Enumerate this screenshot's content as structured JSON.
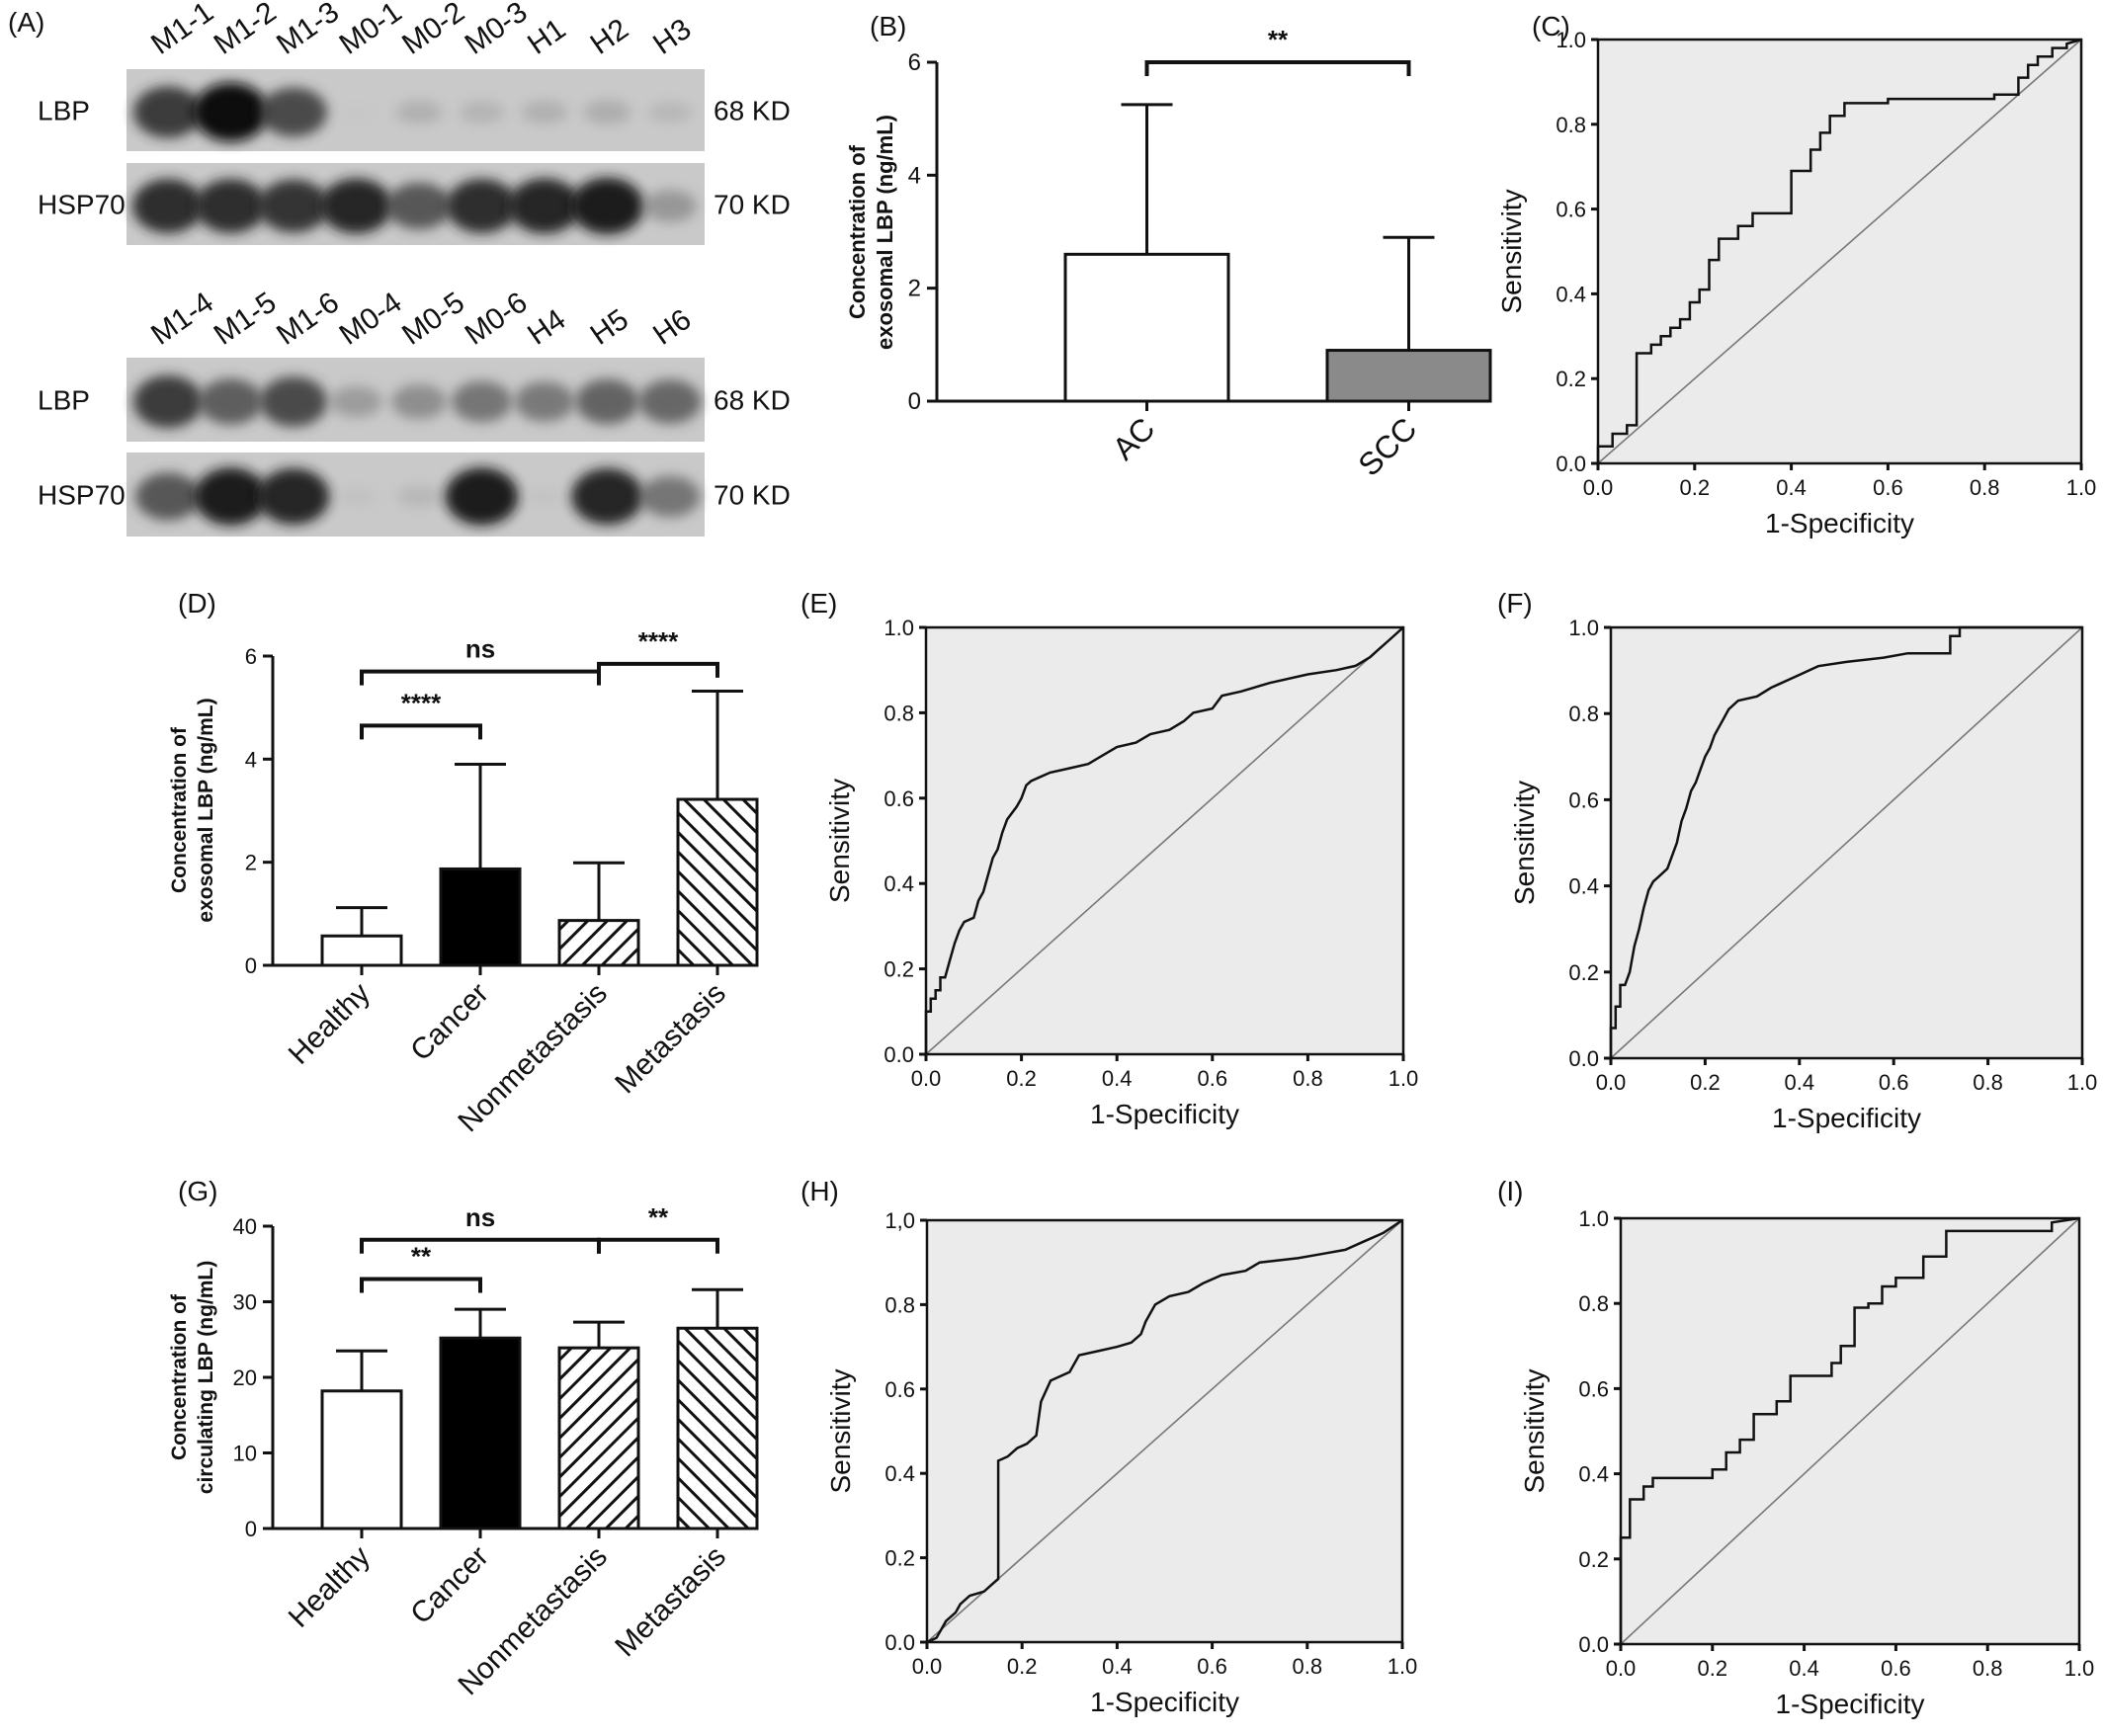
{
  "panels": {
    "A": {
      "label": "(A)",
      "blot_top": {
        "lanes": [
          "M1-1",
          "M1-2",
          "M1-3",
          "M0-1",
          "M0-2",
          "M0-3",
          "H1",
          "H2",
          "H3"
        ],
        "rows": [
          {
            "name": "LBP",
            "size": "68 KD",
            "intensities": [
              0.85,
              1.0,
              0.8,
              0.05,
              0.28,
              0.25,
              0.28,
              0.3,
              0.22
            ]
          },
          {
            "name": "HSP70",
            "size": "70 KD",
            "intensities": [
              0.9,
              0.9,
              0.88,
              0.92,
              0.75,
              0.9,
              0.92,
              0.95,
              0.45
            ]
          }
        ]
      },
      "blot_bottom": {
        "lanes": [
          "M1-4",
          "M1-5",
          "M1-6",
          "M0-4",
          "M0-5",
          "M0-6",
          "H4",
          "H5",
          "H6"
        ],
        "rows": [
          {
            "name": "LBP",
            "size": "68 KD",
            "intensities": [
              0.85,
              0.72,
              0.8,
              0.42,
              0.5,
              0.62,
              0.6,
              0.7,
              0.68
            ]
          },
          {
            "name": "HSP70",
            "size": "70 KD",
            "intensities": [
              0.75,
              0.95,
              0.92,
              0.12,
              0.22,
              0.95,
              0.1,
              0.92,
              0.62
            ]
          }
        ]
      }
    }
  },
  "chart_data": [
    {
      "id": "B",
      "label": "(B)",
      "type": "bar",
      "categories": [
        "AC",
        "SCC"
      ],
      "values": [
        2.6,
        0.9
      ],
      "errors": [
        2.65,
        2.0
      ],
      "fills": [
        "#ffffff",
        "#8a8a8a"
      ],
      "patterns": [
        "none",
        "none"
      ],
      "ylabel": [
        "Concentration of",
        "exosomal LBP (ng/mL)"
      ],
      "ylim": [
        0,
        6
      ],
      "yticks": [
        0,
        2,
        4,
        6
      ],
      "significance": [
        {
          "from": 0,
          "to": 1,
          "text": "**",
          "y": 6
        }
      ]
    },
    {
      "id": "C",
      "label": "(C)",
      "type": "line",
      "subtype": "roc",
      "xlabel": "1-Specificity",
      "ylabel": "Sensitivity",
      "xlim": [
        0,
        1
      ],
      "ylim": [
        0,
        1
      ],
      "ticks": [
        "0.0",
        "0.2",
        "0.4",
        "0.6",
        "0.8",
        "1.0"
      ],
      "points": [
        [
          0,
          0
        ],
        [
          0,
          0.04
        ],
        [
          0.03,
          0.04
        ],
        [
          0.03,
          0.07
        ],
        [
          0.06,
          0.07
        ],
        [
          0.06,
          0.09
        ],
        [
          0.08,
          0.09
        ],
        [
          0.08,
          0.26
        ],
        [
          0.11,
          0.26
        ],
        [
          0.11,
          0.28
        ],
        [
          0.13,
          0.28
        ],
        [
          0.13,
          0.3
        ],
        [
          0.15,
          0.3
        ],
        [
          0.15,
          0.32
        ],
        [
          0.17,
          0.32
        ],
        [
          0.17,
          0.34
        ],
        [
          0.19,
          0.34
        ],
        [
          0.19,
          0.38
        ],
        [
          0.21,
          0.38
        ],
        [
          0.21,
          0.41
        ],
        [
          0.23,
          0.41
        ],
        [
          0.23,
          0.48
        ],
        [
          0.25,
          0.48
        ],
        [
          0.25,
          0.53
        ],
        [
          0.29,
          0.53
        ],
        [
          0.29,
          0.56
        ],
        [
          0.32,
          0.56
        ],
        [
          0.32,
          0.59
        ],
        [
          0.4,
          0.59
        ],
        [
          0.4,
          0.69
        ],
        [
          0.44,
          0.69
        ],
        [
          0.44,
          0.74
        ],
        [
          0.46,
          0.74
        ],
        [
          0.46,
          0.78
        ],
        [
          0.48,
          0.78
        ],
        [
          0.48,
          0.82
        ],
        [
          0.51,
          0.82
        ],
        [
          0.51,
          0.85
        ],
        [
          0.6,
          0.85
        ],
        [
          0.6,
          0.86
        ],
        [
          0.82,
          0.86
        ],
        [
          0.82,
          0.87
        ],
        [
          0.87,
          0.87
        ],
        [
          0.87,
          0.91
        ],
        [
          0.89,
          0.91
        ],
        [
          0.89,
          0.94
        ],
        [
          0.91,
          0.94
        ],
        [
          0.91,
          0.96
        ],
        [
          0.94,
          0.96
        ],
        [
          0.94,
          0.98
        ],
        [
          0.97,
          0.98
        ],
        [
          0.97,
          0.99
        ],
        [
          1,
          1
        ]
      ]
    },
    {
      "id": "D",
      "label": "(D)",
      "type": "bar",
      "categories": [
        "Healthy",
        "Cancer",
        "Nonmetastasis",
        "Metastasis"
      ],
      "values": [
        0.57,
        1.87,
        0.87,
        3.22
      ],
      "errors": [
        0.55,
        2.03,
        1.12,
        2.1
      ],
      "fills": [
        "#ffffff",
        "#000000",
        "#ffffff",
        "#ffffff"
      ],
      "patterns": [
        "none",
        "none",
        "hatch-back",
        "hatch-fwd"
      ],
      "ylabel": [
        "Concentration of",
        "exosomal LBP (ng/mL)"
      ],
      "ylim": [
        0,
        6
      ],
      "yticks": [
        0,
        2,
        4,
        6
      ],
      "significance": [
        {
          "from": 0,
          "to": 2,
          "text": "ns",
          "y": 5.7
        },
        {
          "from": 0,
          "to": 1,
          "text": "****",
          "y": 4.65
        },
        {
          "from": 2,
          "to": 3,
          "text": "****",
          "y": 5.85
        }
      ]
    },
    {
      "id": "E",
      "label": "(E)",
      "type": "line",
      "subtype": "roc",
      "xlabel": "1-Specificity",
      "ylabel": "Sensitivity",
      "xlim": [
        0,
        1
      ],
      "ylim": [
        0,
        1
      ],
      "ticks": [
        "0.0",
        "0.2",
        "0.4",
        "0.6",
        "0.8",
        "1.0"
      ],
      "points": [
        [
          0,
          0
        ],
        [
          0,
          0.1
        ],
        [
          0.01,
          0.1
        ],
        [
          0.01,
          0.13
        ],
        [
          0.02,
          0.13
        ],
        [
          0.02,
          0.15
        ],
        [
          0.03,
          0.15
        ],
        [
          0.03,
          0.18
        ],
        [
          0.04,
          0.18
        ],
        [
          0.05,
          0.22
        ],
        [
          0.06,
          0.26
        ],
        [
          0.07,
          0.29
        ],
        [
          0.08,
          0.31
        ],
        [
          0.1,
          0.32
        ],
        [
          0.11,
          0.36
        ],
        [
          0.12,
          0.38
        ],
        [
          0.13,
          0.42
        ],
        [
          0.14,
          0.46
        ],
        [
          0.15,
          0.48
        ],
        [
          0.16,
          0.52
        ],
        [
          0.17,
          0.55
        ],
        [
          0.19,
          0.58
        ],
        [
          0.2,
          0.6
        ],
        [
          0.21,
          0.63
        ],
        [
          0.22,
          0.64
        ],
        [
          0.24,
          0.65
        ],
        [
          0.26,
          0.66
        ],
        [
          0.3,
          0.67
        ],
        [
          0.34,
          0.68
        ],
        [
          0.37,
          0.7
        ],
        [
          0.4,
          0.72
        ],
        [
          0.44,
          0.73
        ],
        [
          0.47,
          0.75
        ],
        [
          0.51,
          0.76
        ],
        [
          0.54,
          0.78
        ],
        [
          0.56,
          0.8
        ],
        [
          0.6,
          0.81
        ],
        [
          0.62,
          0.84
        ],
        [
          0.66,
          0.85
        ],
        [
          0.72,
          0.87
        ],
        [
          0.8,
          0.89
        ],
        [
          0.86,
          0.9
        ],
        [
          0.9,
          0.91
        ],
        [
          0.93,
          0.93
        ],
        [
          0.95,
          0.95
        ],
        [
          0.97,
          0.97
        ],
        [
          1,
          1
        ]
      ]
    },
    {
      "id": "F",
      "label": "(F)",
      "type": "line",
      "subtype": "roc",
      "xlabel": "1-Specificity",
      "ylabel": "Sensitivity",
      "xlim": [
        0,
        1
      ],
      "ylim": [
        0,
        1
      ],
      "ticks": [
        "0.0",
        "0.2",
        "0.4",
        "0.6",
        "0.8",
        "1.0"
      ],
      "points": [
        [
          0,
          0
        ],
        [
          0,
          0.07
        ],
        [
          0.01,
          0.07
        ],
        [
          0.01,
          0.12
        ],
        [
          0.02,
          0.12
        ],
        [
          0.02,
          0.17
        ],
        [
          0.03,
          0.17
        ],
        [
          0.04,
          0.2
        ],
        [
          0.05,
          0.26
        ],
        [
          0.06,
          0.3
        ],
        [
          0.07,
          0.35
        ],
        [
          0.08,
          0.39
        ],
        [
          0.09,
          0.41
        ],
        [
          0.1,
          0.42
        ],
        [
          0.12,
          0.44
        ],
        [
          0.13,
          0.47
        ],
        [
          0.14,
          0.5
        ],
        [
          0.15,
          0.55
        ],
        [
          0.16,
          0.58
        ],
        [
          0.17,
          0.62
        ],
        [
          0.18,
          0.64
        ],
        [
          0.19,
          0.67
        ],
        [
          0.2,
          0.7
        ],
        [
          0.21,
          0.72
        ],
        [
          0.22,
          0.75
        ],
        [
          0.23,
          0.77
        ],
        [
          0.24,
          0.79
        ],
        [
          0.25,
          0.81
        ],
        [
          0.27,
          0.83
        ],
        [
          0.31,
          0.84
        ],
        [
          0.34,
          0.86
        ],
        [
          0.36,
          0.87
        ],
        [
          0.4,
          0.89
        ],
        [
          0.44,
          0.91
        ],
        [
          0.5,
          0.92
        ],
        [
          0.58,
          0.93
        ],
        [
          0.63,
          0.94
        ],
        [
          0.72,
          0.94
        ],
        [
          0.72,
          0.98
        ],
        [
          0.74,
          0.98
        ],
        [
          0.74,
          1.0
        ],
        [
          1,
          1
        ]
      ]
    },
    {
      "id": "G",
      "label": "(G)",
      "type": "bar",
      "categories": [
        "Healthy",
        "Cancer",
        "Nonmetastasis",
        "Metastasis"
      ],
      "values": [
        18.2,
        25.2,
        23.9,
        26.5
      ],
      "errors": [
        5.3,
        3.8,
        3.4,
        5.1
      ],
      "fills": [
        "#ffffff",
        "#000000",
        "#ffffff",
        "#ffffff"
      ],
      "patterns": [
        "none",
        "none",
        "hatch-back",
        "hatch-fwd"
      ],
      "ylabel": [
        "Concentration of",
        "circulating LBP (ng/mL)"
      ],
      "ylim": [
        0,
        40
      ],
      "yticks": [
        0,
        10,
        20,
        30,
        40
      ],
      "significance": [
        {
          "from": 0,
          "to": 2,
          "text": "ns",
          "y": 38.2
        },
        {
          "from": 0,
          "to": 1,
          "text": "**",
          "y": 33.0
        },
        {
          "from": 2,
          "to": 3,
          "text": "**",
          "y": 38.2
        }
      ]
    },
    {
      "id": "H",
      "label": "(H)",
      "type": "line",
      "subtype": "roc",
      "xlabel": "1-Specificity",
      "ylabel": "Sensitivity",
      "xlim": [
        0,
        1
      ],
      "ylim": [
        0,
        1
      ],
      "ticks": [
        "0.0",
        "0.2",
        "0.4",
        "0.6",
        "0.8",
        "1.0"
      ],
      "ytick_labels": [
        "0.0",
        "0.2",
        "0.4",
        "0.6",
        "0.8",
        "1,0"
      ],
      "points": [
        [
          0,
          0
        ],
        [
          0.02,
          0.01
        ],
        [
          0.03,
          0.03
        ],
        [
          0.04,
          0.05
        ],
        [
          0.06,
          0.07
        ],
        [
          0.07,
          0.09
        ],
        [
          0.09,
          0.11
        ],
        [
          0.12,
          0.12
        ],
        [
          0.14,
          0.14
        ],
        [
          0.15,
          0.15
        ],
        [
          0.15,
          0.43
        ],
        [
          0.17,
          0.44
        ],
        [
          0.19,
          0.46
        ],
        [
          0.21,
          0.47
        ],
        [
          0.23,
          0.49
        ],
        [
          0.24,
          0.57
        ],
        [
          0.26,
          0.62
        ],
        [
          0.3,
          0.64
        ],
        [
          0.32,
          0.68
        ],
        [
          0.36,
          0.69
        ],
        [
          0.4,
          0.7
        ],
        [
          0.43,
          0.71
        ],
        [
          0.45,
          0.73
        ],
        [
          0.46,
          0.76
        ],
        [
          0.48,
          0.8
        ],
        [
          0.51,
          0.82
        ],
        [
          0.55,
          0.83
        ],
        [
          0.58,
          0.85
        ],
        [
          0.62,
          0.87
        ],
        [
          0.67,
          0.88
        ],
        [
          0.7,
          0.9
        ],
        [
          0.78,
          0.91
        ],
        [
          0.83,
          0.92
        ],
        [
          0.88,
          0.93
        ],
        [
          0.92,
          0.95
        ],
        [
          0.96,
          0.97
        ],
        [
          1,
          1
        ]
      ]
    },
    {
      "id": "I",
      "label": "(I)",
      "type": "line",
      "subtype": "roc",
      "xlabel": "1-Specificity",
      "ylabel": "Sensitivity",
      "xlim": [
        0,
        1
      ],
      "ylim": [
        0,
        1
      ],
      "ticks": [
        "0.0",
        "0.2",
        "0.4",
        "0.6",
        "0.8",
        "1.0"
      ],
      "points": [
        [
          0,
          0
        ],
        [
          0,
          0.25
        ],
        [
          0.02,
          0.25
        ],
        [
          0.02,
          0.34
        ],
        [
          0.05,
          0.34
        ],
        [
          0.05,
          0.37
        ],
        [
          0.07,
          0.37
        ],
        [
          0.07,
          0.39
        ],
        [
          0.2,
          0.39
        ],
        [
          0.2,
          0.41
        ],
        [
          0.23,
          0.41
        ],
        [
          0.23,
          0.45
        ],
        [
          0.26,
          0.45
        ],
        [
          0.26,
          0.48
        ],
        [
          0.29,
          0.48
        ],
        [
          0.29,
          0.54
        ],
        [
          0.34,
          0.54
        ],
        [
          0.34,
          0.57
        ],
        [
          0.37,
          0.57
        ],
        [
          0.37,
          0.63
        ],
        [
          0.46,
          0.63
        ],
        [
          0.46,
          0.66
        ],
        [
          0.48,
          0.66
        ],
        [
          0.48,
          0.7
        ],
        [
          0.51,
          0.7
        ],
        [
          0.51,
          0.79
        ],
        [
          0.54,
          0.79
        ],
        [
          0.54,
          0.8
        ],
        [
          0.57,
          0.8
        ],
        [
          0.57,
          0.84
        ],
        [
          0.6,
          0.84
        ],
        [
          0.6,
          0.86
        ],
        [
          0.66,
          0.86
        ],
        [
          0.66,
          0.91
        ],
        [
          0.71,
          0.91
        ],
        [
          0.71,
          0.97
        ],
        [
          0.94,
          0.97
        ],
        [
          0.94,
          0.99
        ],
        [
          1,
          1
        ]
      ]
    }
  ]
}
